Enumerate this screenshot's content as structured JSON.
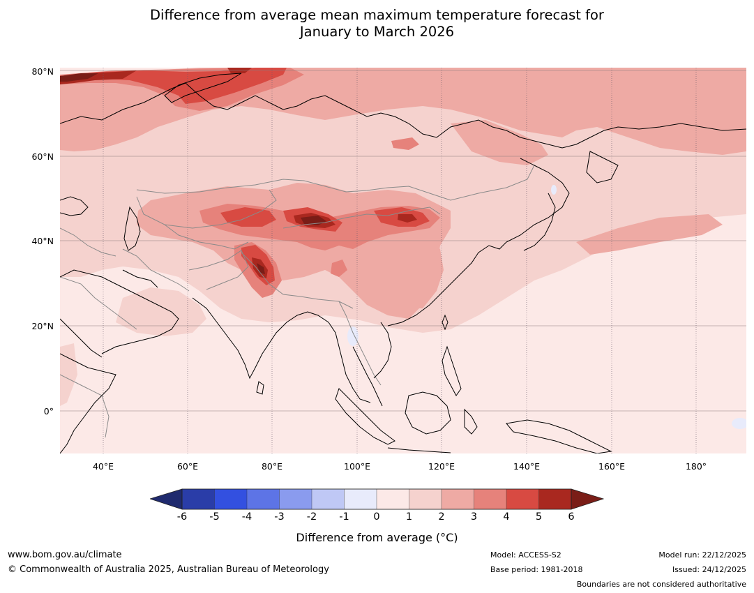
{
  "title_line1": "Difference from average mean maximum temperature forecast for",
  "title_line2": "January to March 2026",
  "map": {
    "lat_labels": [
      "80°N",
      "60°N",
      "40°N",
      "20°N",
      "0°"
    ],
    "lon_labels": [
      "40°E",
      "60°E",
      "80°E",
      "100°E",
      "120°E",
      "140°E",
      "160°E",
      "180°"
    ],
    "colors": {
      "land_outline": "#000000",
      "country_border": "#8a8a8a",
      "grid": "#8a7a7a"
    }
  },
  "colorbar": {
    "label": "Difference from average ($^\\circ$C)",
    "label_text": "Difference from average (",
    "label_unit": "°C)",
    "ticks": [
      "-6",
      "-5",
      "-4",
      "-3",
      "-2",
      "-1",
      "0",
      "1",
      "2",
      "3",
      "4",
      "5",
      "6"
    ],
    "colors": {
      "below_min": "#1f2a6e",
      "bins": [
        "#2a3da8",
        "#3350e0",
        "#5d74e6",
        "#8a9bee",
        "#bfc8f5",
        "#e8ebfb",
        "#fce9e7",
        "#f5d2ce",
        "#eeaaa4",
        "#e6827b",
        "#d84a42",
        "#a9281f"
      ],
      "above_max": "#7a1d17"
    }
  },
  "footer": {
    "url": "www.bom.gov.au/climate",
    "copyright": "© Commonwealth of Australia 2025, Australian Bureau of Meteorology",
    "model": "Model: ACCESS-S2",
    "base_period": "Base period: 1981-2018",
    "model_run": "Model run: 22/12/2025",
    "issued": "Issued: 24/12/2025",
    "disclaimer": "Boundaries are not considered authoritative"
  }
}
